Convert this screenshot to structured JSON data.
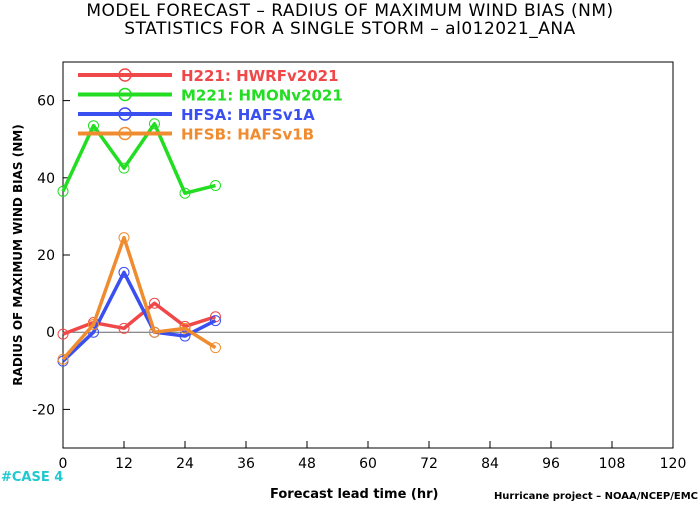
{
  "title": "MODEL FORECAST – RADIUS OF MAXIMUM WIND BIAS (NM)",
  "subtitle": "STATISTICS FOR A SINGLE STORM – al012021_ANA",
  "case_label": "#CASE  4",
  "credit": "Hurricane project – NOAA/NCEP/EMC",
  "chart_data": {
    "type": "line",
    "title": "MODEL FORECAST – RADIUS OF MAXIMUM WIND BIAS (NM)",
    "subtitle": "STATISTICS FOR A SINGLE STORM – al012021_ANA",
    "xlabel": "Forecast lead time (hr)",
    "ylabel": "RADIUS OF MAXIMUM WIND BIAS (NM)",
    "xlim": [
      0,
      120
    ],
    "ylim": [
      -30,
      70
    ],
    "xticks": [
      0,
      12,
      24,
      36,
      48,
      60,
      72,
      84,
      96,
      108,
      120
    ],
    "yticks": [
      -20,
      0,
      20,
      40,
      60
    ],
    "legend_position": "top-left",
    "grid": false,
    "series": [
      {
        "name": "H221:  HWRFv2021",
        "color": "#f04848",
        "x": [
          0,
          6,
          12,
          18,
          24,
          30
        ],
        "y": [
          -0.5,
          2.5,
          1,
          7.5,
          1.5,
          4
        ]
      },
      {
        "name": "M221:  HMONv2021",
        "color": "#22dd22",
        "x": [
          0,
          6,
          12,
          18,
          24,
          30
        ],
        "y": [
          36.5,
          53.5,
          42.5,
          54,
          36,
          38
        ]
      },
      {
        "name": "HFSA:  HAFSv1A",
        "color": "#3a4ff0",
        "x": [
          0,
          6,
          12,
          18,
          24,
          30
        ],
        "y": [
          -7.5,
          0,
          15.5,
          0,
          -1,
          3
        ]
      },
      {
        "name": "HFSB:  HAFSv1B",
        "color": "#f08c30",
        "x": [
          0,
          6,
          12,
          18,
          24,
          30
        ],
        "y": [
          -7,
          2,
          24.5,
          0,
          1,
          -4
        ]
      }
    ]
  }
}
